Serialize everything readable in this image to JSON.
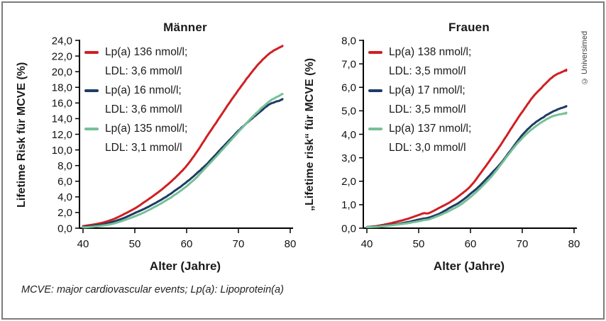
{
  "figure": {
    "footnote": "MCVE: major cardiovascular events; Lp(a): Lipoprotein(a)",
    "credit": "© Universimed",
    "border_color": "#7c7c7c",
    "background": "#ffffff",
    "axis_color": "#000000"
  },
  "chart_data": [
    {
      "id": "maenner",
      "type": "line",
      "title": "Männer",
      "xlabel": "Alter (Jahre)",
      "ylabel": "Lifetime Risk für MCVE (%)",
      "xlim": [
        40,
        80
      ],
      "xticks": [
        40,
        50,
        60,
        70,
        80
      ],
      "ylim": [
        0,
        24
      ],
      "ytick_step": 2,
      "decimal_comma": true,
      "grid": false,
      "legend_position": "upper-left-inside",
      "x": [
        40,
        42,
        44,
        46,
        48,
        50,
        52,
        54,
        56,
        58,
        60,
        62,
        64,
        66,
        68,
        70,
        72,
        74,
        76,
        78,
        78.5
      ],
      "series": [
        {
          "legend_line1": "Lp(a) 136 nmol/l;",
          "legend_line2": "LDL: 3,6 mmol/l",
          "color": "#d01f23",
          "values": [
            0.25,
            0.45,
            0.75,
            1.2,
            1.8,
            2.55,
            3.4,
            4.35,
            5.4,
            6.6,
            8.0,
            9.8,
            11.8,
            13.8,
            15.8,
            17.6,
            19.4,
            21.0,
            22.3,
            23.1,
            23.3
          ]
        },
        {
          "legend_line1": "Lp(a) 16 nmol/l;",
          "legend_line2": "LDL: 3,6 mmol/l",
          "color": "#1e3c64",
          "values": [
            0.15,
            0.3,
            0.5,
            0.85,
            1.3,
            1.9,
            2.55,
            3.25,
            4.0,
            4.9,
            5.9,
            7.05,
            8.3,
            9.7,
            11.1,
            12.4,
            13.65,
            14.85,
            15.85,
            16.4,
            16.5
          ]
        },
        {
          "legend_line1": "Lp(a) 135 nmol/l;",
          "legend_line2": "LDL: 3,1 mmol/l",
          "color": "#76c097",
          "values": [
            0.1,
            0.2,
            0.35,
            0.6,
            1.0,
            1.5,
            2.1,
            2.75,
            3.5,
            4.4,
            5.4,
            6.6,
            7.95,
            9.35,
            10.85,
            12.3,
            13.75,
            15.1,
            16.3,
            17.0,
            17.15
          ]
        }
      ]
    },
    {
      "id": "frauen",
      "type": "line",
      "title": "Frauen",
      "xlabel": "Alter (Jahre)",
      "ylabel": "„Lifetime risk“ für MCVE (%)",
      "xlim": [
        40,
        80
      ],
      "xticks": [
        40,
        50,
        60,
        70,
        80
      ],
      "ylim": [
        0,
        8
      ],
      "ytick_step": 1,
      "decimal_comma": true,
      "grid": false,
      "legend_position": "upper-left-inside",
      "x": [
        40,
        42,
        44,
        46,
        48,
        50,
        51,
        52,
        54,
        56,
        58,
        60,
        62,
        64,
        66,
        68,
        70,
        72,
        74,
        76,
        78,
        78.5
      ],
      "series": [
        {
          "legend_line1": "Lp(a) 138 nmol/l;",
          "legend_line2": "LDL: 3,5 mmol/l",
          "color": "#d01f23",
          "values": [
            0.05,
            0.1,
            0.18,
            0.28,
            0.4,
            0.55,
            0.63,
            0.65,
            0.88,
            1.12,
            1.42,
            1.8,
            2.35,
            2.95,
            3.6,
            4.3,
            4.95,
            5.55,
            6.05,
            6.45,
            6.7,
            6.75
          ]
        },
        {
          "legend_line1": "Lp(a) 17 nmol/l;",
          "legend_line2": "LDL: 3,5 mmol/l",
          "color": "#1e3c64",
          "values": [
            0.05,
            0.07,
            0.12,
            0.18,
            0.27,
            0.36,
            0.4,
            0.45,
            0.62,
            0.85,
            1.12,
            1.45,
            1.85,
            2.3,
            2.8,
            3.4,
            3.95,
            4.4,
            4.72,
            4.95,
            5.15,
            5.2
          ]
        },
        {
          "legend_line1": "Lp(a) 137 nmol/l;",
          "legend_line2": "LDL: 3,0 mmol/l",
          "color": "#76c097",
          "values": [
            0.04,
            0.06,
            0.1,
            0.15,
            0.22,
            0.3,
            0.34,
            0.38,
            0.54,
            0.75,
            1.0,
            1.32,
            1.72,
            2.2,
            2.75,
            3.35,
            3.85,
            4.25,
            4.55,
            4.78,
            4.9,
            4.92
          ]
        }
      ]
    }
  ]
}
